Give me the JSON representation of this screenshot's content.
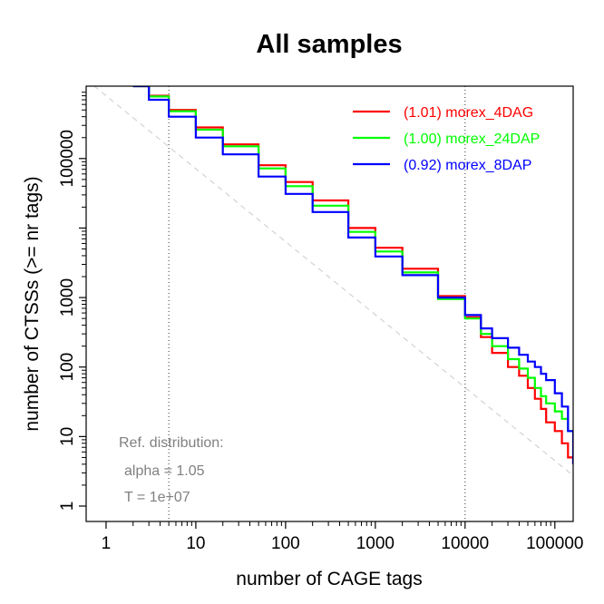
{
  "chart_data": {
    "type": "line",
    "title": "All samples",
    "xlabel": "number of CAGE tags",
    "ylabel": "number of CTSSs (>= nr tags)",
    "x_scale": "log",
    "y_scale": "log",
    "xlim": [
      0.6,
      160000
    ],
    "ylim": [
      0.6,
      1100000
    ],
    "x_ticks": [
      1,
      10,
      100,
      1000,
      10000,
      100000
    ],
    "x_tick_labels": [
      "1",
      "10",
      "100",
      "1000",
      "10000",
      "100000"
    ],
    "y_ticks": [
      1,
      10,
      100,
      1000,
      100000
    ],
    "y_tick_labels": [
      "1",
      "10",
      "100",
      "1000",
      "100000"
    ],
    "grid": false,
    "legend_position": "top-right",
    "vertical_reference_lines": [
      5,
      10000
    ],
    "series": [
      {
        "name": "(1.01) morex_4DAG",
        "color": "#ff0000",
        "x": [
          2,
          3,
          5,
          10,
          20,
          50,
          100,
          200,
          500,
          1000,
          2000,
          5000,
          10000,
          15000,
          20000,
          30000,
          40000,
          50000,
          60000,
          70000,
          80000,
          100000,
          120000,
          140000,
          160000
        ],
        "y": [
          1100000,
          800000,
          500000,
          280000,
          160000,
          80000,
          46000,
          25000,
          10000,
          5200,
          2600,
          1050,
          520,
          270,
          160,
          100,
          75,
          50,
          35,
          25,
          16,
          12,
          8,
          5,
          4
        ]
      },
      {
        "name": "(1.00) morex_24DAP",
        "color": "#00ff00",
        "x": [
          2,
          3,
          5,
          10,
          20,
          50,
          100,
          200,
          500,
          1000,
          2000,
          5000,
          10000,
          15000,
          20000,
          30000,
          40000,
          50000,
          60000,
          70000,
          80000,
          100000,
          120000,
          140000,
          160000
        ],
        "y": [
          1100000,
          780000,
          480000,
          260000,
          150000,
          72000,
          40000,
          21000,
          8800,
          4600,
          2300,
          950,
          500,
          300,
          200,
          130,
          95,
          70,
          50,
          38,
          30,
          23,
          18,
          12,
          11
        ]
      },
      {
        "name": "(0.92) morex_8DAP",
        "color": "#0000ff",
        "x": [
          2,
          3,
          5,
          10,
          20,
          50,
          100,
          200,
          500,
          1000,
          2000,
          5000,
          10000,
          15000,
          20000,
          30000,
          40000,
          50000,
          60000,
          70000,
          80000,
          100000,
          120000,
          140000,
          160000
        ],
        "y": [
          1100000,
          700000,
          400000,
          200000,
          115000,
          55000,
          31000,
          17000,
          7300,
          3900,
          2100,
          1000,
          560,
          360,
          260,
          190,
          150,
          120,
          100,
          80,
          65,
          42,
          27,
          12,
          4
        ]
      }
    ],
    "reference_distribution": {
      "label": "Ref. distribution:",
      "alpha_text": "alpha = 1.05",
      "T_text": "T = 1e+07",
      "alpha": 1.05,
      "T": 10000000,
      "color": "#d3d3d3"
    }
  }
}
